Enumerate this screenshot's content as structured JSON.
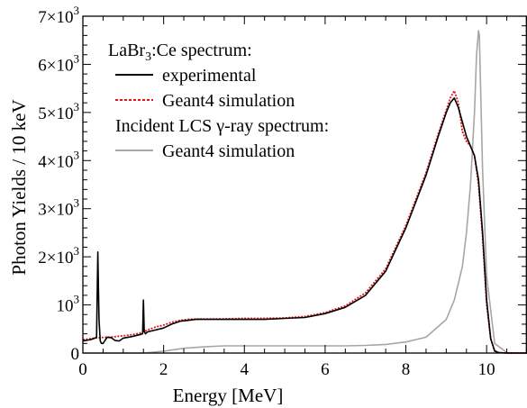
{
  "chart_data": {
    "type": "line",
    "xlabel": "Energy [MeV]",
    "ylabel": "Photon Yields / 10 keV",
    "xlim": [
      0,
      11
    ],
    "ylim": [
      0,
      7000
    ],
    "grid": false,
    "legend_placement": "top-left",
    "x_ticks": [
      {
        "value": 0,
        "label": "0"
      },
      {
        "value": 2,
        "label": "2"
      },
      {
        "value": 4,
        "label": "4"
      },
      {
        "value": 6,
        "label": "6"
      },
      {
        "value": 8,
        "label": "8"
      },
      {
        "value": 10,
        "label": "10"
      }
    ],
    "y_ticks": [
      {
        "value": 0,
        "mant": "0",
        "exp": ""
      },
      {
        "value": 1000,
        "mant": "10",
        "exp": "3"
      },
      {
        "value": 2000,
        "mant": "2×10",
        "exp": "3"
      },
      {
        "value": 3000,
        "mant": "3×10",
        "exp": "3"
      },
      {
        "value": 4000,
        "mant": "4×10",
        "exp": "3"
      },
      {
        "value": 5000,
        "mant": "5×10",
        "exp": "3"
      },
      {
        "value": 6000,
        "mant": "6×10",
        "exp": "3"
      },
      {
        "value": 7000,
        "mant": "7×10",
        "exp": "3"
      }
    ],
    "legend": {
      "group1_title_pre": "LaBr",
      "group1_title_sub": "3",
      "group1_title_post": ":Ce spectrum:",
      "group2_title_pre": "Incident LCS ",
      "group2_title_gamma": "γ",
      "group2_title_post": "-ray spectrum:"
    },
    "series": [
      {
        "name": "experimental",
        "color": "#000000",
        "style": "solid",
        "x": [
          0.0,
          0.2,
          0.3,
          0.34,
          0.37,
          0.4,
          0.43,
          0.46,
          0.5,
          0.6,
          0.7,
          0.8,
          0.9,
          1.0,
          1.2,
          1.4,
          1.48,
          1.5,
          1.52,
          1.55,
          1.6,
          1.8,
          2.0,
          2.2,
          2.4,
          2.6,
          2.8,
          3.0,
          3.5,
          4.0,
          4.5,
          5.0,
          5.5,
          6.0,
          6.5,
          7.0,
          7.5,
          8.0,
          8.5,
          8.8,
          9.0,
          9.1,
          9.2,
          9.3,
          9.4,
          9.5,
          9.6,
          9.7,
          9.8,
          9.9,
          10.0,
          10.1,
          10.2,
          10.3,
          10.5,
          11.0
        ],
        "y": [
          250,
          280,
          310,
          330,
          2100,
          700,
          250,
          200,
          200,
          330,
          320,
          260,
          250,
          310,
          340,
          380,
          400,
          1100,
          450,
          400,
          440,
          480,
          520,
          600,
          660,
          680,
          700,
          700,
          700,
          700,
          700,
          720,
          740,
          820,
          950,
          1200,
          1700,
          2600,
          3700,
          4500,
          5000,
          5200,
          5300,
          5100,
          4800,
          4500,
          4300,
          4100,
          3600,
          2500,
          1100,
          300,
          40,
          10,
          0,
          0
        ]
      },
      {
        "name": "Geant4 simulation",
        "color": "#e8141a",
        "style": "dotted",
        "x": [
          0.0,
          0.2,
          0.4,
          0.6,
          0.8,
          1.0,
          1.2,
          1.4,
          1.6,
          1.8,
          2.0,
          2.2,
          2.4,
          2.6,
          2.8,
          3.0,
          3.5,
          4.0,
          4.5,
          5.0,
          5.5,
          6.0,
          6.5,
          7.0,
          7.5,
          8.0,
          8.5,
          8.8,
          9.0,
          9.1,
          9.2,
          9.3,
          9.4,
          9.5,
          9.6,
          9.7,
          9.8,
          9.9,
          10.0,
          10.1,
          10.2,
          10.3,
          10.5,
          11.0
        ],
        "y": [
          280,
          300,
          320,
          330,
          340,
          360,
          380,
          410,
          480,
          540,
          580,
          640,
          680,
          700,
          710,
          710,
          710,
          720,
          720,
          730,
          760,
          840,
          980,
          1250,
          1750,
          2650,
          3750,
          4550,
          5050,
          5300,
          5450,
          5200,
          4600,
          4400,
          4300,
          4100,
          3500,
          2400,
          1000,
          300,
          50,
          10,
          0,
          0
        ]
      },
      {
        "name": "Geant4 simulation",
        "color": "#a6a6a6",
        "style": "solid",
        "x": [
          0.0,
          0.5,
          0.9,
          1.0,
          1.5,
          2.0,
          2.5,
          3.0,
          3.5,
          4.0,
          4.5,
          5.0,
          5.5,
          6.0,
          6.5,
          7.0,
          7.5,
          8.0,
          8.5,
          9.0,
          9.2,
          9.4,
          9.5,
          9.6,
          9.7,
          9.75,
          9.8,
          9.82,
          9.85,
          9.9,
          10.0,
          10.2,
          10.5,
          11.0
        ],
        "y": [
          0,
          0,
          0,
          0,
          0,
          40,
          100,
          130,
          150,
          150,
          150,
          150,
          150,
          150,
          150,
          160,
          180,
          230,
          330,
          700,
          1100,
          1800,
          2500,
          3500,
          5000,
          6200,
          6700,
          6600,
          5500,
          3800,
          1600,
          200,
          10,
          0
        ]
      }
    ]
  }
}
